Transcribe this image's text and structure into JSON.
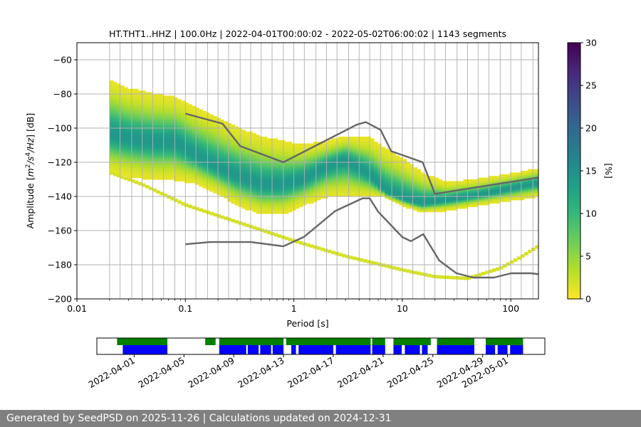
{
  "chart_data": [
    {
      "type": "heatmap",
      "title": "HT.THT1..HHZ | 100.0Hz | 2022-04-01T00:00:02 - 2022-05-02T06:00:02 | 1143 segments",
      "xlabel": "Period [s]",
      "ylabel_parts": [
        "Amplitude [",
        "m",
        "2",
        "/",
        "s",
        "4",
        "/",
        "Hz",
        "] [dB]"
      ],
      "xscale": "log",
      "xlim": [
        0.01,
        180
      ],
      "ylim": [
        -200,
        -50
      ],
      "xticks": [
        {
          "value": 0.01,
          "label": "0.01"
        },
        {
          "value": 0.1,
          "label": "0.1"
        },
        {
          "value": 1,
          "label": "1"
        },
        {
          "value": 10,
          "label": "10"
        },
        {
          "value": 100,
          "label": "100"
        }
      ],
      "yticks": [
        {
          "value": -60,
          "label": "−60"
        },
        {
          "value": -80,
          "label": "−80"
        },
        {
          "value": -100,
          "label": "−100"
        },
        {
          "value": -120,
          "label": "−120"
        },
        {
          "value": -140,
          "label": "−140"
        },
        {
          "value": -160,
          "label": "−160"
        },
        {
          "value": -180,
          "label": "−180"
        },
        {
          "value": -200,
          "label": "−200"
        }
      ],
      "grid": true,
      "period_gridlines": [
        0.02,
        0.025,
        0.032,
        0.04,
        0.05,
        0.063,
        0.08,
        0.1,
        0.125,
        0.16,
        0.2,
        0.25,
        0.32,
        0.4,
        0.5,
        0.63,
        0.8,
        1,
        1.25,
        1.6,
        2,
        2.5,
        3.2,
        4,
        5,
        6.3,
        8,
        10,
        12.5,
        16,
        20,
        25,
        32,
        40,
        50,
        63,
        80,
        100,
        125,
        160
      ],
      "psd_density_bands": [
        {
          "period": 0.02,
          "low": -126,
          "high": -72,
          "mode": -103
        },
        {
          "period": 0.03,
          "low": -128,
          "high": -77,
          "mode": -106
        },
        {
          "period": 0.05,
          "low": -130,
          "high": -80,
          "mode": -108
        },
        {
          "period": 0.08,
          "low": -130,
          "high": -82,
          "mode": -108
        },
        {
          "period": 0.12,
          "low": -132,
          "high": -88,
          "mode": -115
        },
        {
          "period": 0.2,
          "low": -138,
          "high": -94,
          "mode": -123
        },
        {
          "period": 0.3,
          "low": -145,
          "high": -100,
          "mode": -128
        },
        {
          "period": 0.5,
          "low": -150,
          "high": -105,
          "mode": -133
        },
        {
          "period": 0.8,
          "low": -150,
          "high": -108,
          "mode": -133
        },
        {
          "period": 1.2,
          "low": -145,
          "high": -110,
          "mode": -130
        },
        {
          "period": 2,
          "low": -140,
          "high": -108,
          "mode": -122
        },
        {
          "period": 3,
          "low": -140,
          "high": -105,
          "mode": -118
        },
        {
          "period": 5,
          "low": -140,
          "high": -106,
          "mode": -127
        },
        {
          "period": 7,
          "low": -140,
          "high": -112,
          "mode": -137
        },
        {
          "period": 10,
          "low": -145,
          "high": -118,
          "mode": -141
        },
        {
          "period": 15,
          "low": -149,
          "high": -126,
          "mode": -144
        },
        {
          "period": 25,
          "low": -148,
          "high": -132,
          "mode": -142
        },
        {
          "period": 50,
          "low": -145,
          "high": -130,
          "mode": -139
        },
        {
          "period": 100,
          "low": -142,
          "high": -127,
          "mode": -135
        },
        {
          "period": 170,
          "low": -140,
          "high": -124,
          "mode": -132
        }
      ],
      "outlier_trace": [
        {
          "period": 0.02,
          "db": -126
        },
        {
          "period": 0.04,
          "db": -133
        },
        {
          "period": 0.1,
          "db": -145
        },
        {
          "period": 0.3,
          "db": -155
        },
        {
          "period": 1,
          "db": -166
        },
        {
          "period": 3,
          "db": -175
        },
        {
          "period": 10,
          "db": -183
        },
        {
          "period": 20,
          "db": -187
        },
        {
          "period": 40,
          "db": -188
        },
        {
          "period": 80,
          "db": -182
        },
        {
          "period": 120,
          "db": -176
        },
        {
          "period": 180,
          "db": -169
        }
      ],
      "series": [
        {
          "key": "nhnm",
          "x": [
            0.1,
            0.22,
            0.32,
            0.8,
            3.8,
            4.6,
            6.3,
            7.9,
            15.4,
            20,
            354
          ],
          "y": [
            -91.5,
            -97.4,
            -110.5,
            -120,
            -98,
            -96.5,
            -101,
            -113.5,
            -120,
            -138.5,
            -126
          ]
        },
        {
          "key": "nlnm",
          "x": [
            0.1,
            0.17,
            0.4,
            0.8,
            1.24,
            2.4,
            4.3,
            5,
            6,
            10,
            12,
            15.6,
            21.9,
            31.6,
            45,
            70,
            101,
            154,
            328
          ],
          "y": [
            -168,
            -166.7,
            -166.7,
            -169.2,
            -163.7,
            -148.6,
            -141.1,
            -141.1,
            -149,
            -163.8,
            -166.2,
            -162.1,
            -177.5,
            -185,
            -187.5,
            -187.5,
            -185,
            -185,
            -187.5
          ]
        }
      ],
      "colorbar": {
        "label": "[%]",
        "min": 0,
        "max": 30,
        "ticks": [
          {
            "value": 0,
            "label": "0"
          },
          {
            "value": 5,
            "label": "5"
          },
          {
            "value": 10,
            "label": "10"
          },
          {
            "value": 15,
            "label": "15"
          },
          {
            "value": 20,
            "label": "20"
          },
          {
            "value": 25,
            "label": "25"
          },
          {
            "value": 30,
            "label": "30"
          }
        ],
        "colormap": [
          "#fde725",
          "#b5de2b",
          "#6ece58",
          "#35b779",
          "#1f9e89",
          "#26828e",
          "#31688e",
          "#3e4989",
          "#482878",
          "#440154"
        ]
      },
      "colors": {
        "model_line": "#666666",
        "gridline": "#b0b0b0"
      }
    },
    {
      "type": "timeline",
      "date_range": [
        "2022-03-29",
        "2022-05-04"
      ],
      "ticks": [
        "2022-04-01",
        "2022-04-05",
        "2022-04-09",
        "2022-04-13",
        "2022-04-17",
        "2022-04-21",
        "2022-04-25",
        "2022-04-29",
        "2022-05-01"
      ],
      "availability": [
        [
          "2022-03-30T15:00",
          "2022-04-03T16:00"
        ],
        [
          "2022-04-06T17:00",
          "2022-04-07T13:00"
        ],
        [
          "2022-04-07T20:00",
          "2022-04-13T00:00"
        ],
        [
          "2022-04-13T05:00",
          "2022-04-20T00:00"
        ],
        [
          "2022-04-20T03:00",
          "2022-04-21T04:00"
        ],
        [
          "2022-04-21T20:00",
          "2022-04-24T20:00"
        ],
        [
          "2022-04-25T08:00",
          "2022-04-28T08:00"
        ],
        [
          "2022-04-29T06:00",
          "2022-05-02T06:00"
        ]
      ],
      "psd_coverage": [
        [
          "2022-03-31T02:00",
          "2022-04-03T16:00"
        ],
        [
          "2022-04-07T20:00",
          "2022-04-10T00:00"
        ],
        [
          "2022-04-10T03:00",
          "2022-04-11T00:00"
        ],
        [
          "2022-04-11T03:00",
          "2022-04-12T00:00"
        ],
        [
          "2022-04-12T03:00",
          "2022-04-13T00:00"
        ],
        [
          "2022-04-13T15:00",
          "2022-04-14T00:00"
        ],
        [
          "2022-04-14T05:00",
          "2022-04-17T00:00"
        ],
        [
          "2022-04-17T05:00",
          "2022-04-20T00:00"
        ],
        [
          "2022-04-20T03:00",
          "2022-04-21T04:00"
        ],
        [
          "2022-04-21T20:00",
          "2022-04-22T12:00"
        ],
        [
          "2022-04-22T18:00",
          "2022-04-23T23:00"
        ],
        [
          "2022-04-24T03:00",
          "2022-04-24T14:00"
        ],
        [
          "2022-04-25T08:00",
          "2022-04-28T08:00"
        ],
        [
          "2022-04-29T06:00",
          "2022-04-30T00:00"
        ],
        [
          "2022-04-30T05:00",
          "2022-05-01T00:00"
        ],
        [
          "2022-05-01T05:00",
          "2022-05-02T06:00"
        ]
      ],
      "colors": {
        "availability": "#008000",
        "psd_coverage": "#0000ff"
      }
    }
  ],
  "footer": {
    "text": "Generated by SeedPSD on 2025-11-26 | Calculations updated on 2024-12-31"
  }
}
